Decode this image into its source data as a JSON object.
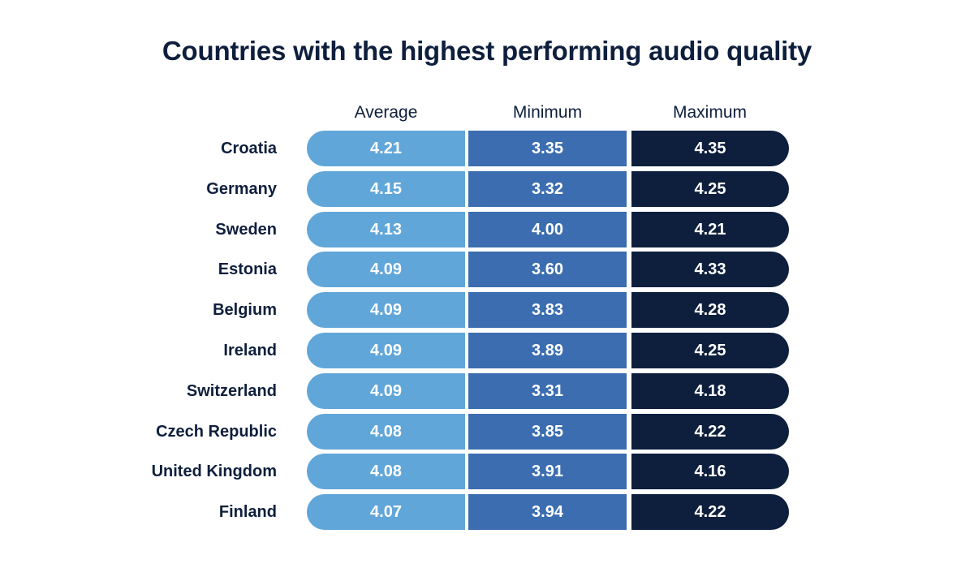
{
  "colors": {
    "average": "#60a6d9",
    "minimum": "#3b6db0",
    "maximum": "#0e1f3d",
    "text_dark": "#0e1f3d"
  },
  "chart_data": {
    "type": "table",
    "title": "Countries with the highest performing audio quality",
    "columns": [
      "Average",
      "Minimum",
      "Maximum"
    ],
    "rows": [
      {
        "country": "Croatia",
        "values": [
          "4.21",
          "3.35",
          "4.35"
        ]
      },
      {
        "country": "Germany",
        "values": [
          "4.15",
          "3.32",
          "4.25"
        ]
      },
      {
        "country": "Sweden",
        "values": [
          "4.13",
          "4.00",
          "4.21"
        ]
      },
      {
        "country": "Estonia",
        "values": [
          "4.09",
          "3.60",
          "4.33"
        ]
      },
      {
        "country": "Belgium",
        "values": [
          "4.09",
          "3.83",
          "4.28"
        ]
      },
      {
        "country": "Ireland",
        "values": [
          "4.09",
          "3.89",
          "4.25"
        ]
      },
      {
        "country": "Switzerland",
        "values": [
          "4.09",
          "3.31",
          "4.18"
        ]
      },
      {
        "country": "Czech Republic",
        "values": [
          "4.08",
          "3.85",
          "4.22"
        ]
      },
      {
        "country": "United Kingdom",
        "values": [
          "4.08",
          "3.91",
          "4.16"
        ]
      },
      {
        "country": "Finland",
        "values": [
          "4.07",
          "3.94",
          "4.22"
        ]
      }
    ]
  }
}
